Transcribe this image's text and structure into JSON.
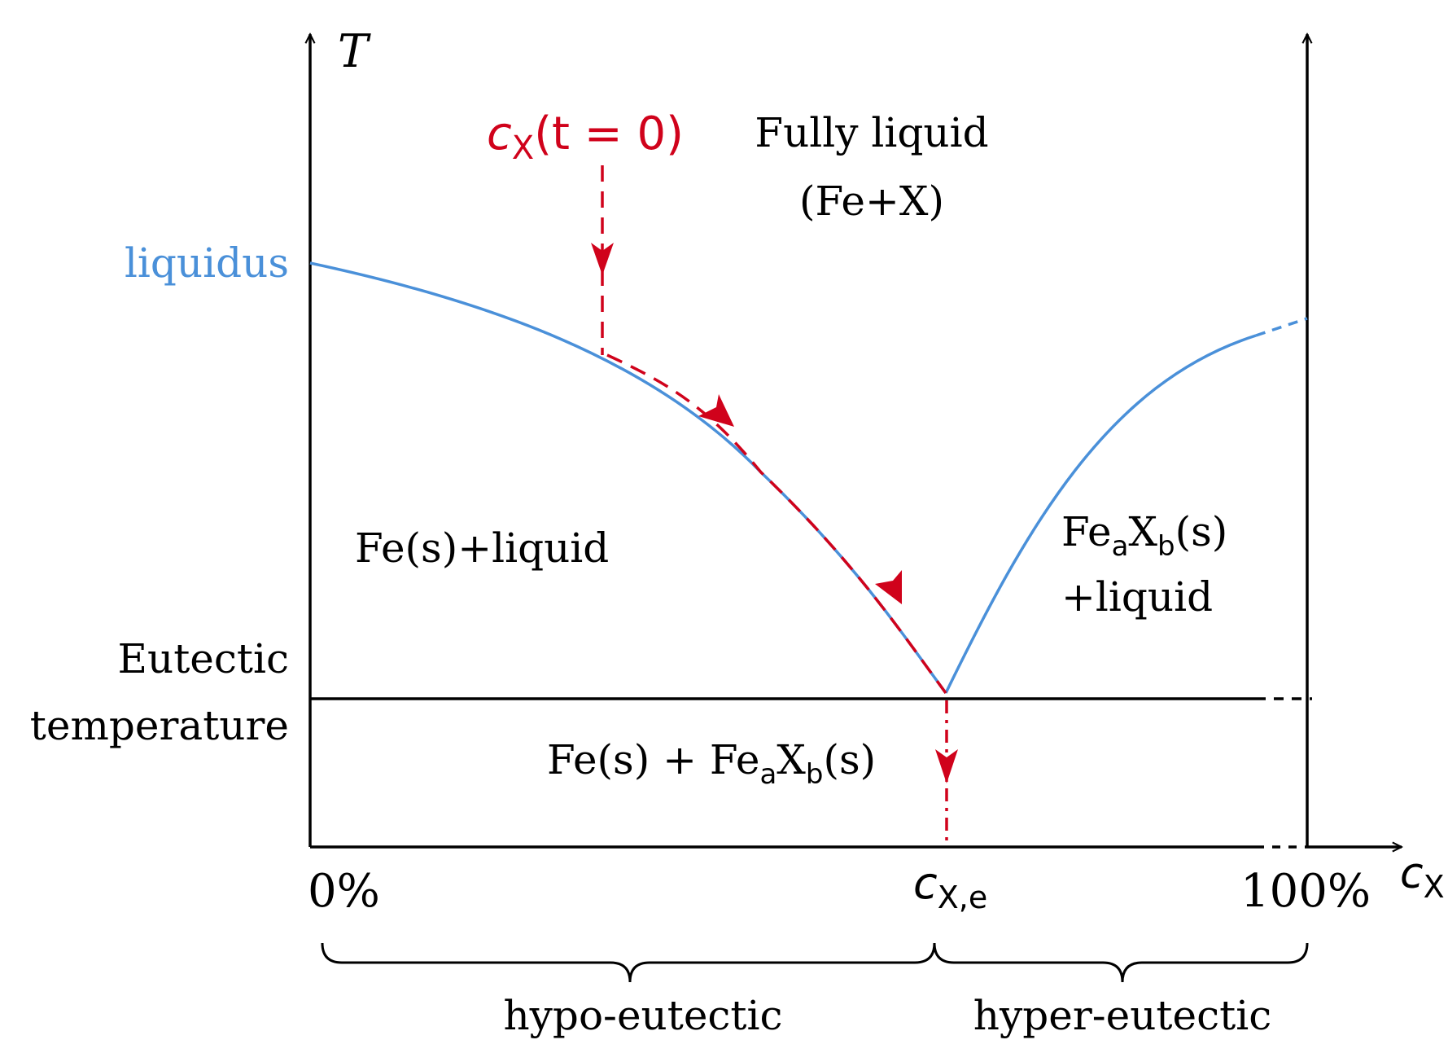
{
  "axes": {
    "y_label": "T",
    "x_label_main": "c",
    "x_label_sub": "X"
  },
  "ticks": {
    "zero": "0%",
    "eutectic_main": "c",
    "eutectic_sub": "X,e",
    "hundred": "100%"
  },
  "labels": {
    "liquidus": "liquidus",
    "eutectic_temp_line1": "Eutectic",
    "eutectic_temp_line2": "temperature",
    "fully_liquid_line1": "Fully liquid",
    "fully_liquid_line2": "(Fe+X)",
    "fe_s_liquid": "Fe(s)+liquid",
    "feaxb_liquid_line1_pre": "Fe",
    "feaxb_liquid_line1_sub_a": "a",
    "feaxb_liquid_line1_mid": "X",
    "feaxb_liquid_line1_sub_b": "b",
    "feaxb_liquid_line1_post": "(s)",
    "feaxb_liquid_line2": "+liquid",
    "solid_region_pre": "Fe(s) + Fe",
    "solid_region_sub_a": "a",
    "solid_region_mid": "X",
    "solid_region_sub_b": "b",
    "solid_region_post": "(s)",
    "hypo": "hypo-eutectic",
    "hyper": "hyper-eutectic"
  },
  "path_label": {
    "c": "c",
    "sub": "X",
    "rest": "(t = 0)"
  },
  "colors": {
    "liquidus": "#4a90d9",
    "path": "#d0021b",
    "axis": "#000000"
  }
}
